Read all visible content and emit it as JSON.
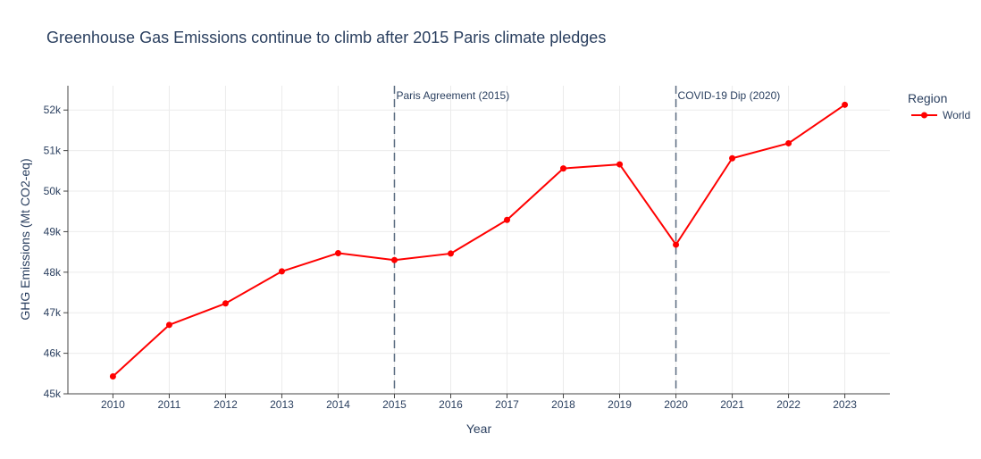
{
  "chart_data": {
    "type": "line",
    "title": "Greenhouse Gas Emissions continue to climb after 2015 Paris climate pledges",
    "xlabel": "Year",
    "ylabel": "GHG Emissions (Mt CO2-eq)",
    "x": [
      2010,
      2011,
      2012,
      2013,
      2014,
      2015,
      2016,
      2017,
      2018,
      2019,
      2020,
      2021,
      2022,
      2023
    ],
    "x_tick_labels": [
      "2010",
      "2011",
      "2012",
      "2013",
      "2014",
      "2015",
      "2016",
      "2017",
      "2018",
      "2019",
      "2020",
      "2021",
      "2022",
      "2023"
    ],
    "ylim": [
      45000,
      52600
    ],
    "y_ticks": [
      45000,
      46000,
      47000,
      48000,
      49000,
      50000,
      51000,
      52000
    ],
    "y_tick_labels": [
      "45k",
      "46k",
      "47k",
      "48k",
      "49k",
      "50k",
      "51k",
      "52k"
    ],
    "grid": true,
    "legend": {
      "title": "Region",
      "placement": "top-right"
    },
    "series": [
      {
        "name": "World",
        "color": "#ff0000",
        "values": [
          45430,
          46700,
          47230,
          48020,
          48470,
          48300,
          48460,
          49290,
          50560,
          50660,
          48680,
          50810,
          51180,
          52130
        ]
      }
    ],
    "annotations": [
      {
        "x": 2015,
        "text": "Paris Agreement (2015)"
      },
      {
        "x": 2020,
        "text": "COVID-19 Dip (2020)"
      }
    ],
    "annotation_line_color": "#5a6b80"
  }
}
